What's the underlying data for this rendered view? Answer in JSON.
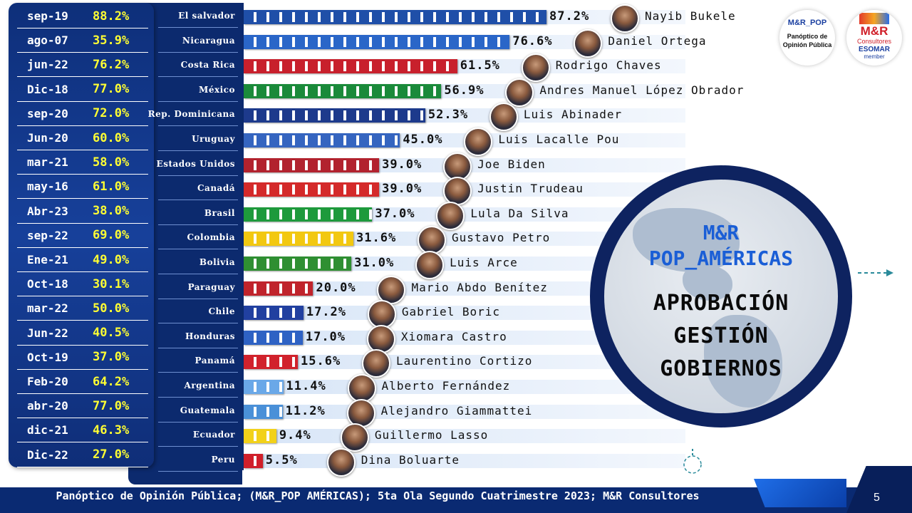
{
  "historical": [
    {
      "date": "sep-19",
      "value": "88.2%"
    },
    {
      "date": "ago-07",
      "value": "35.9%"
    },
    {
      "date": "jun-22",
      "value": "76.2%"
    },
    {
      "date": "Dic-18",
      "value": "77.0%"
    },
    {
      "date": "sep-20",
      "value": "72.0%"
    },
    {
      "date": "Jun-20",
      "value": "60.0%"
    },
    {
      "date": "mar-21",
      "value": "58.0%"
    },
    {
      "date": "may-16",
      "value": "61.0%"
    },
    {
      "date": "Abr-23",
      "value": "38.0%"
    },
    {
      "date": "sep-22",
      "value": "69.0%"
    },
    {
      "date": "Ene-21",
      "value": "49.0%"
    },
    {
      "date": "Oct-18",
      "value": "30.1%"
    },
    {
      "date": "mar-22",
      "value": "50.0%"
    },
    {
      "date": "Jun-22",
      "value": "40.5%"
    },
    {
      "date": "Oct-19",
      "value": "37.0%"
    },
    {
      "date": "Feb-20",
      "value": "64.2%"
    },
    {
      "date": "abr-20",
      "value": "77.0%"
    },
    {
      "date": "dic-21",
      "value": "46.3%"
    },
    {
      "date": "Dic-22",
      "value": "27.0%"
    }
  ],
  "chart_data": {
    "type": "bar",
    "orientation": "horizontal",
    "categories": [
      "El salvador",
      "Nicaragua",
      "Costa Rica",
      "México",
      "Rep. Dominicana",
      "Uruguay",
      "Estados Unidos",
      "Canadá",
      "Brasil",
      "Colombia",
      "Bolivia",
      "Paraguay",
      "Chile",
      "Honduras",
      "Panamá",
      "Argentina",
      "Guatemala",
      "Ecuador",
      "Peru"
    ],
    "leaders": [
      "Nayib Bukele",
      "Daniel Ortega",
      "Rodrigo Chaves",
      "Andres Manuel López Obrador",
      "Luis Abinader",
      "Luis Lacalle Pou",
      "Joe Biden",
      "Justin Trudeau",
      "Lula Da Silva",
      "Gustavo Petro",
      "Luis Arce",
      "Mario Abdo Benítez",
      "Gabriel Boric",
      "Xiomara Castro",
      "Laurentino Cortizo",
      "Alberto Fernández",
      "Alejandro Giammattei",
      "Guillermo Lasso",
      "Dina Boluarte"
    ],
    "values": [
      87.2,
      76.6,
      61.5,
      56.9,
      52.3,
      45.0,
      39.0,
      39.0,
      37.0,
      31.6,
      31.0,
      20.0,
      17.2,
      17.0,
      15.6,
      11.4,
      11.2,
      9.4,
      5.5
    ],
    "labels": [
      "87.2%",
      "76.6%",
      "61.5%",
      "56.9%",
      "52.3%",
      "45.0%",
      "39.0%",
      "39.0%",
      "37.0%",
      "31.6%",
      "31.0%",
      "20.0%",
      "17.2%",
      "17.0%",
      "15.6%",
      "11.4%",
      "11.2%",
      "9.4%",
      "5.5%"
    ],
    "bar_colors": [
      "#1f4fa8",
      "#2a66c8",
      "#c8202c",
      "#1a8a3a",
      "#1d3a8c",
      "#3565c0",
      "#b2222e",
      "#d42a2a",
      "#1e9a3c",
      "#f2c811",
      "#2f8f32",
      "#c0242c",
      "#2140a0",
      "#2e62c4",
      "#d1222c",
      "#6aa8e8",
      "#4a90d8",
      "#f2d11a",
      "#d01f2a"
    ],
    "xlim": [
      0,
      100
    ]
  },
  "circle": {
    "title_line1": "M&R",
    "title_line2": "POP_AMÉRICAS",
    "subtitle_line1": "APROBACIÓN",
    "subtitle_line2": "GESTIÓN",
    "subtitle_line3": "GOBIERNOS"
  },
  "logos": {
    "pop_mark": "M&R_POP",
    "pop_text1": "Panóptico de",
    "pop_text2": "Opinión Pública",
    "mr_mark": "M&R",
    "mr_sub": "Consultores",
    "mr_esomar": "ESOMAR",
    "mr_member": "member"
  },
  "footer": {
    "text": "Panóptico de Opinión Pública; (M&R_POP AMÉRICAS); 5ta Ola Segundo Cuatrimestre 2023; M&R Consultores",
    "page": "5"
  }
}
